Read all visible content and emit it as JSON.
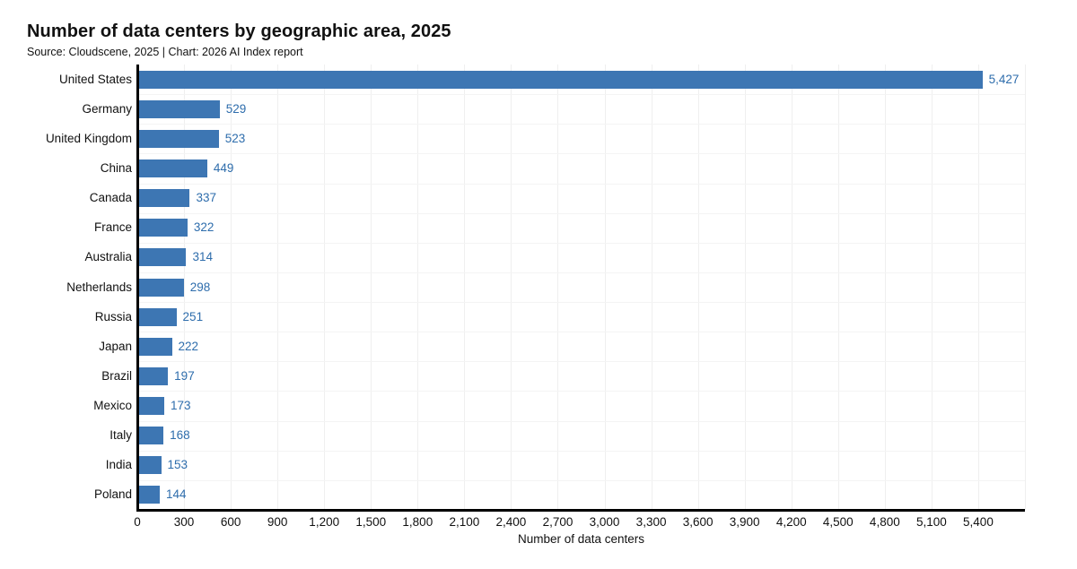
{
  "chart_data": {
    "type": "bar",
    "orientation": "horizontal",
    "title": "Number of data centers by geographic area, 2025",
    "subtitle": "Source: Cloudscene, 2025 | Chart: 2026 AI Index report",
    "xlabel": "Number of data centers",
    "categories": [
      "United States",
      "Germany",
      "United Kingdom",
      "China",
      "Canada",
      "France",
      "Australia",
      "Netherlands",
      "Russia",
      "Japan",
      "Brazil",
      "Mexico",
      "Italy",
      "India",
      "Poland"
    ],
    "values": [
      5427,
      529,
      523,
      449,
      337,
      322,
      314,
      298,
      251,
      222,
      197,
      173,
      168,
      153,
      144
    ],
    "value_labels": [
      "5,427",
      "529",
      "523",
      "449",
      "337",
      "322",
      "314",
      "298",
      "251",
      "222",
      "197",
      "173",
      "168",
      "153",
      "144"
    ],
    "xlim": [
      0,
      5700
    ],
    "xticks": [
      0,
      300,
      600,
      900,
      1200,
      1500,
      1800,
      2100,
      2400,
      2700,
      3000,
      3300,
      3600,
      3900,
      4200,
      4500,
      4800,
      5100,
      5400
    ],
    "xtick_labels": [
      "0",
      "300",
      "600",
      "900",
      "1,200",
      "1,500",
      "1,800",
      "2,100",
      "2,400",
      "2,700",
      "3,000",
      "3,300",
      "3,600",
      "3,900",
      "4,200",
      "4,500",
      "4,800",
      "5,100",
      "5,400"
    ],
    "grid": true,
    "legend": "none",
    "colors": {
      "bar": "#3d76b3",
      "value_label": "#2e6dac",
      "text": "#111111",
      "gridline_vertical": "#efefef",
      "gridline_horizontal": "#f4f4f4",
      "axis": "#000000"
    }
  }
}
